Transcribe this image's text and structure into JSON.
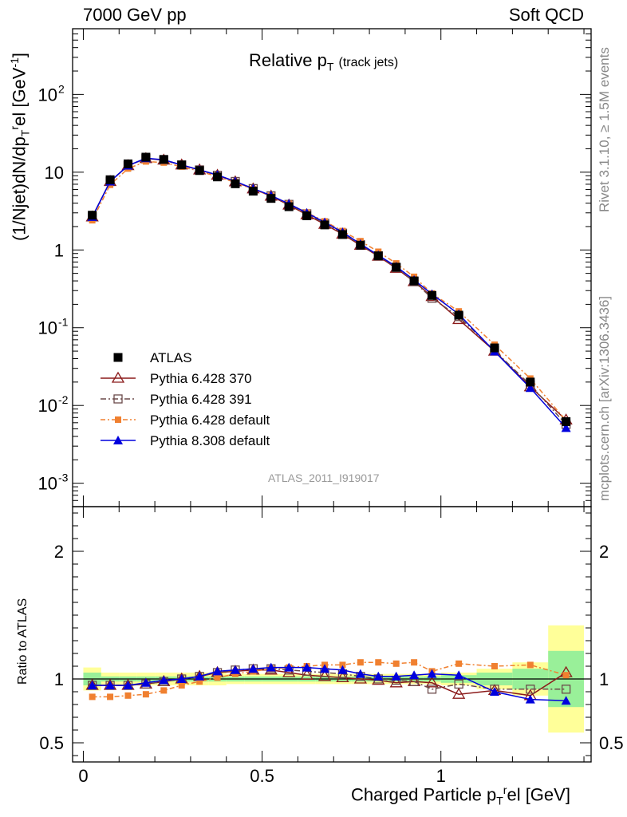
{
  "header": {
    "left": "7000 GeV pp",
    "right": "Soft QCD"
  },
  "side_labels": {
    "rivet": "Rivet 3.1.10, ≥ 1.5M events",
    "mcplots": "mcplots.cern.ch [arXiv:1306.3436]"
  },
  "chart_data": {
    "type": "line",
    "title_main": "Relative p",
    "title_sub": "T",
    "title_extra": "(track jets)",
    "analysis_id": "ATLAS_2011_I919017",
    "xlabel": "Charged Particle p",
    "xlabel_sub": "T",
    "xlabel_sup": "r",
    "xlabel_tail": "el [GeV]",
    "ylabel": "(1/Njet)dN/dp",
    "ylabel_sub": "T",
    "ylabel_sup": "r",
    "ylabel_tail": "el [GeV",
    "ylabel_unit_sup": "-1",
    "ylabel_end": "]",
    "ratio_ylabel": "Ratio to ATLAS",
    "x_range": [
      -0.03,
      1.42
    ],
    "y_scale": "log",
    "y_range": [
      0.0005,
      700
    ],
    "ratio_range": [
      0.35,
      2.35
    ],
    "x_ticks": [
      "0",
      "0.5",
      "1"
    ],
    "y_ticks": [
      "10^-3",
      "10^-2",
      "10^-1",
      "1",
      "10",
      "10^2"
    ],
    "ratio_ticks": [
      "0.5",
      "1",
      "2"
    ],
    "x": [
      0.025,
      0.075,
      0.125,
      0.175,
      0.225,
      0.275,
      0.325,
      0.375,
      0.425,
      0.475,
      0.525,
      0.575,
      0.625,
      0.675,
      0.725,
      0.775,
      0.825,
      0.875,
      0.925,
      0.975,
      1.05,
      1.15,
      1.25,
      1.35
    ],
    "data": {
      "name": "ATLAS",
      "color": "#000000",
      "values": [
        2.8,
        8.0,
        12.8,
        15.6,
        14.6,
        12.4,
        10.5,
        8.7,
        7.1,
        5.7,
        4.6,
        3.6,
        2.75,
        2.1,
        1.58,
        1.15,
        0.84,
        0.6,
        0.4,
        0.26,
        0.145,
        0.055,
        0.02,
        0.0062
      ],
      "ratio_band_yellow": [
        0.09,
        0.05,
        0.05,
        0.05,
        0.05,
        0.05,
        0.05,
        0.05,
        0.04,
        0.04,
        0.04,
        0.04,
        0.04,
        0.04,
        0.04,
        0.04,
        0.04,
        0.04,
        0.04,
        0.04,
        0.05,
        0.08,
        0.13,
        0.42
      ],
      "ratio_band_green": [
        0.05,
        0.02,
        0.02,
        0.02,
        0.02,
        0.02,
        0.02,
        0.02,
        0.02,
        0.02,
        0.02,
        0.02,
        0.02,
        0.02,
        0.02,
        0.02,
        0.02,
        0.02,
        0.02,
        0.02,
        0.03,
        0.05,
        0.08,
        0.22
      ]
    },
    "series": [
      {
        "name": "Pythia 6.428 370",
        "color": "#8b1a1a",
        "marker": "triangle-open",
        "dash": "",
        "ratio": [
          0.95,
          0.95,
          0.95,
          0.96,
          0.98,
          1.0,
          1.02,
          1.05,
          1.06,
          1.07,
          1.07,
          1.05,
          1.03,
          1.02,
          1.01,
          1.0,
          0.99,
          0.97,
          0.98,
          0.97,
          0.88,
          0.91,
          0.87,
          1.05
        ]
      },
      {
        "name": "Pythia 6.428 391",
        "color": "#6b4a4a",
        "marker": "square-open",
        "dash": "7,3,2,3",
        "ratio": [
          0.95,
          0.95,
          0.95,
          0.96,
          0.98,
          1.0,
          1.02,
          1.05,
          1.07,
          1.08,
          1.08,
          1.07,
          1.06,
          1.05,
          1.04,
          1.02,
          1.0,
          0.99,
          0.98,
          0.92,
          0.96,
          0.92,
          0.92,
          0.92
        ]
      },
      {
        "name": "Pythia 6.428 default",
        "color": "#f08030",
        "marker": "square-filled",
        "dash": "6,3,2,3",
        "ratio": [
          0.86,
          0.86,
          0.87,
          0.88,
          0.91,
          0.95,
          0.98,
          1.01,
          1.04,
          1.06,
          1.08,
          1.09,
          1.1,
          1.11,
          1.11,
          1.13,
          1.13,
          1.12,
          1.13,
          1.06,
          1.12,
          1.1,
          1.11,
          1.03
        ]
      },
      {
        "name": "Pythia 8.308 default",
        "color": "#0000dd",
        "marker": "triangle-filled",
        "dash": "",
        "ratio": [
          0.95,
          0.95,
          0.95,
          0.97,
          0.99,
          1.0,
          1.02,
          1.06,
          1.07,
          1.08,
          1.09,
          1.09,
          1.09,
          1.08,
          1.07,
          1.04,
          1.02,
          1.02,
          1.03,
          1.04,
          1.03,
          0.9,
          0.84,
          0.83
        ]
      }
    ]
  }
}
